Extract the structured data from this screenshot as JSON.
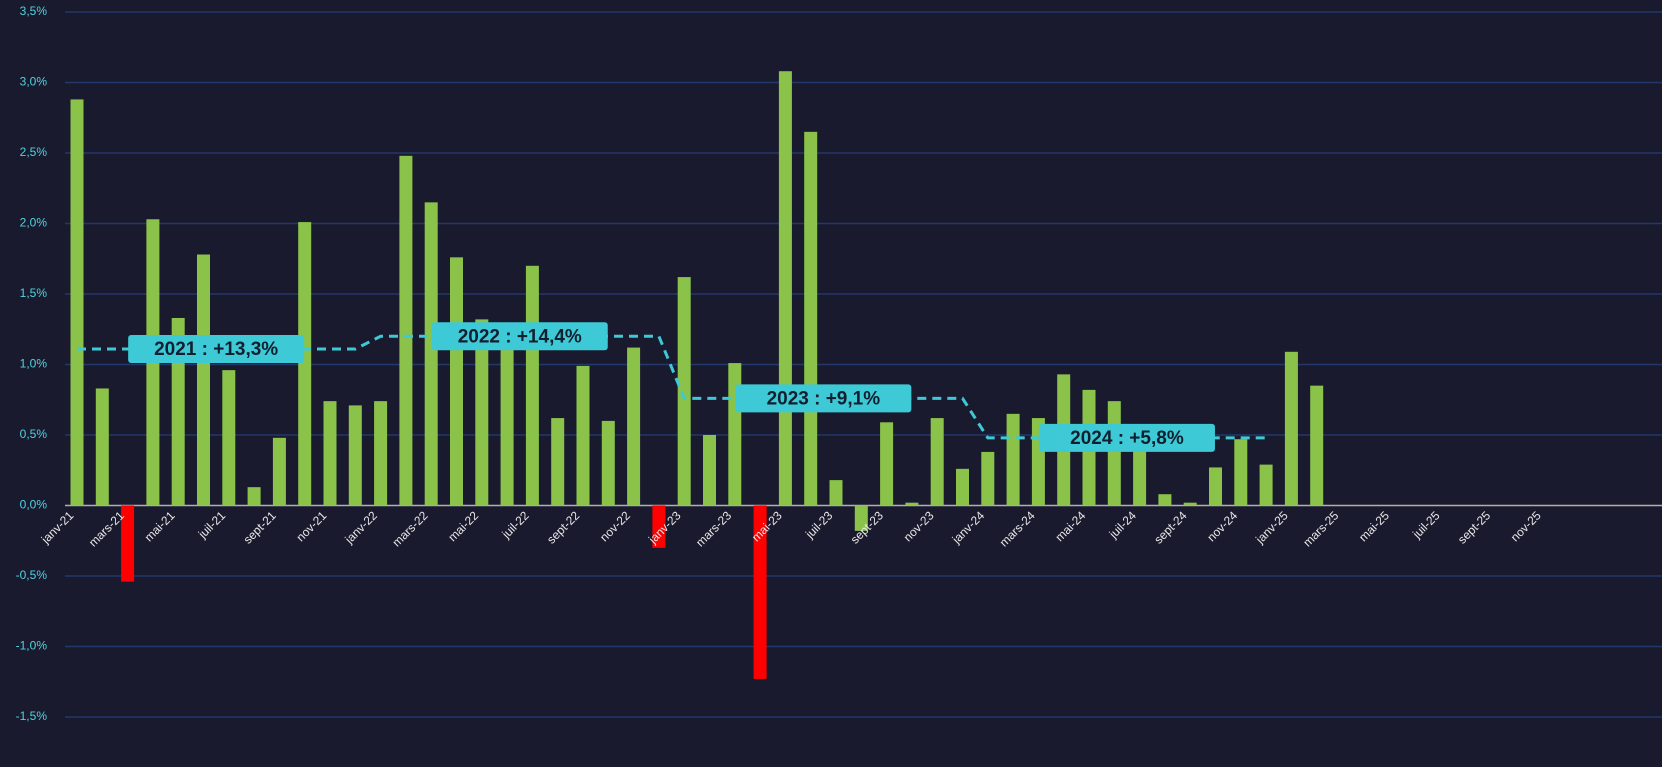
{
  "chart_data": {
    "type": "bar",
    "categories": [
      "janv-21",
      null,
      "mars-21",
      null,
      "mai-21",
      null,
      "juil-21",
      null,
      "sept-21",
      null,
      "nov-21",
      null,
      "janv-22",
      null,
      "mars-22",
      null,
      "mai-22",
      null,
      "juil-22",
      null,
      "sept-22",
      null,
      "nov-22",
      null,
      "janv-23",
      null,
      "mars-23",
      null,
      "mai-23",
      null,
      "juil-23",
      null,
      "sept-23",
      null,
      "nov-23",
      null,
      "janv-24",
      null,
      "mars-24",
      null,
      "mai-24",
      null,
      "juil-24",
      null,
      "sept-24",
      null,
      "nov-24",
      null,
      "janv-25",
      null,
      "mars-25",
      null,
      "mai-25",
      null,
      "juil-25",
      null,
      "sept-25",
      null,
      "nov-25"
    ],
    "values": [
      2.88,
      0.83,
      -0.54,
      2.03,
      1.33,
      1.78,
      0.96,
      0.13,
      0.48,
      2.01,
      0.74,
      0.71,
      0.74,
      2.48,
      2.15,
      1.76,
      1.32,
      1.18,
      1.7,
      0.62,
      0.99,
      0.6,
      1.12,
      -0.3,
      1.62,
      0.5,
      1.01,
      -1.23,
      3.08,
      2.65,
      0.18,
      -0.18,
      0.59,
      0.02,
      0.62,
      0.26,
      0.38,
      0.65,
      0.62,
      0.93,
      0.82,
      0.74,
      0.47,
      0.08,
      0.02,
      0.27,
      0.47,
      0.29,
      1.09,
      0.85,
      null,
      null,
      null,
      null,
      null,
      null,
      null,
      null,
      null
    ],
    "colors": [
      "#8bc34a",
      "#8bc34a",
      "#ff0000",
      "#8bc34a",
      "#8bc34a",
      "#8bc34a",
      "#8bc34a",
      "#8bc34a",
      "#8bc34a",
      "#8bc34a",
      "#8bc34a",
      "#8bc34a",
      "#8bc34a",
      "#8bc34a",
      "#8bc34a",
      "#8bc34a",
      "#8bc34a",
      "#8bc34a",
      "#8bc34a",
      "#8bc34a",
      "#8bc34a",
      "#8bc34a",
      "#8bc34a",
      "#ff0000",
      "#8bc34a",
      "#8bc34a",
      "#8bc34a",
      "#ff0000",
      "#8bc34a",
      "#8bc34a",
      "#8bc34a",
      "#8bc34a",
      "#8bc34a",
      "#8bc34a",
      "#8bc34a",
      "#8bc34a",
      "#8bc34a",
      "#8bc34a",
      "#8bc34a",
      "#8bc34a",
      "#8bc34a",
      "#8bc34a",
      "#8bc34a",
      "#8bc34a",
      "#8bc34a",
      "#8bc34a",
      "#8bc34a",
      "#8bc34a",
      "#8bc34a",
      "#8bc34a",
      null,
      null,
      null,
      null,
      null,
      null,
      null,
      null,
      null
    ],
    "average_line": {
      "color": "#3ec9d6",
      "values": [
        1.11,
        1.11,
        1.11,
        1.11,
        1.11,
        1.11,
        1.11,
        1.11,
        1.11,
        1.11,
        1.11,
        1.11,
        1.2,
        1.2,
        1.2,
        1.2,
        1.2,
        1.2,
        1.2,
        1.2,
        1.2,
        1.2,
        1.2,
        1.2,
        0.76,
        0.76,
        0.76,
        0.76,
        0.76,
        0.76,
        0.76,
        0.76,
        0.76,
        0.76,
        0.76,
        0.76,
        0.48,
        0.48,
        0.48,
        0.48,
        0.48,
        0.48,
        0.48,
        0.48,
        0.48,
        0.48,
        0.48,
        0.48,
        null,
        null,
        null,
        null,
        null,
        null,
        null,
        null,
        null
      ]
    },
    "annotations": [
      "2021 : +13,3%",
      "2022 : +14,4%",
      "2023 : +9,1%",
      "2024 : +5,8%"
    ],
    "ylim": [
      -1.5,
      3.5
    ],
    "yticks": [
      {
        "value": -1.5,
        "label": "-1,5%"
      },
      {
        "value": -1.0,
        "label": "-1,0%"
      },
      {
        "value": -0.5,
        "label": "-0,5%"
      },
      {
        "value": 0,
        "label": "0,0%"
      },
      {
        "value": 0.5,
        "label": "0,5%"
      },
      {
        "value": 1.0,
        "label": "1,0%"
      },
      {
        "value": 1.5,
        "label": "1,5%"
      },
      {
        "value": 2.0,
        "label": "2,0%"
      },
      {
        "value": 2.5,
        "label": "2,5%"
      },
      {
        "value": 3.0,
        "label": "3,0%"
      },
      {
        "value": 3.5,
        "label": "3,5%"
      }
    ],
    "grid": true
  }
}
